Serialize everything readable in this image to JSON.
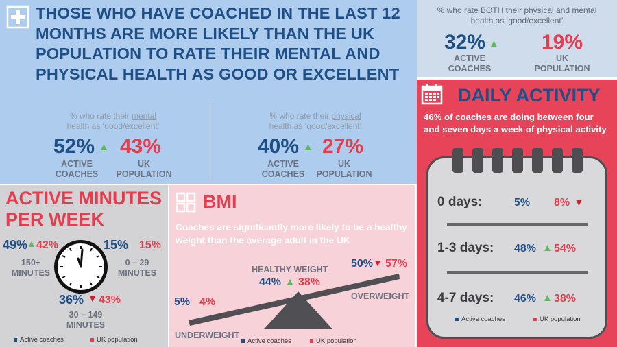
{
  "headline": "THOSE WHO HAVE COACHED IN THE LAST 12 MONTHS ARE MORE LIKELY THAN THE UK POPULATION TO RATE THEIR MENTAL AND PHYSICAL HEALTH AS GOOD OR EXCELLENT",
  "mental": {
    "caption_pre": "% who rate their",
    "caption_key": "mental",
    "caption_post": "health as ‘good/excellent’",
    "coach_value": "52%",
    "coach_label": "ACTIVE COACHES",
    "uk_value": "43%",
    "uk_label": "UK POPULATION"
  },
  "physical": {
    "caption_pre": "% who rate their",
    "caption_key": "physical",
    "caption_post": "health as ‘good/excellent’",
    "coach_value": "40%",
    "coach_label": "ACTIVE COACHES",
    "uk_value": "27%",
    "uk_label": "UK POPULATION"
  },
  "both": {
    "caption_pre": "% who rate BOTH their",
    "caption_key": "physical and mental",
    "caption_post": "health as ‘good/excellent’",
    "coach_value": "32%",
    "coach_label": "ACTIVE COACHES",
    "uk_value": "19%",
    "uk_label": "UK POPULATION"
  },
  "daily": {
    "title": "DAILY ACTIVITY",
    "description": "46% of coaches are doing between four and seven days a week of physical activity",
    "rows": [
      {
        "label": "0 days:",
        "coach": "5%",
        "uk": "8%",
        "trend": "down"
      },
      {
        "label": "1-3 days:",
        "coach": "48%",
        "uk": "54%",
        "trend": "up"
      },
      {
        "label": "4-7 days:",
        "coach": "46%",
        "uk": "38%",
        "trend": "up"
      }
    ],
    "legend_coach": "Active coaches",
    "legend_uk": "UK population"
  },
  "minutes": {
    "title_line1": "ACTIVE MINUTES",
    "title_line2": "PER WEEK",
    "high": {
      "coach": "49%",
      "uk": "42%",
      "label_line1": "150+",
      "label_line2": "MINUTES"
    },
    "low": {
      "coach": "15%",
      "uk": "15%",
      "label_line1": "0 – 29",
      "label_line2": "MINUTES"
    },
    "mid": {
      "coach": "36%",
      "uk": "43%",
      "label_line1": "30 – 149",
      "label_line2": "MINUTES"
    },
    "legend_coach": "Active coaches",
    "legend_uk": "UK population"
  },
  "bmi": {
    "title": "BMI",
    "description": "Coaches are significantly more likely to be a healthy weight than the average adult in the UK",
    "underweight": {
      "coach": "5%",
      "uk": "4%",
      "label": "UNDERWEIGHT"
    },
    "healthy": {
      "coach": "44%",
      "uk": "38%",
      "label": "HEALTHY WEIGHT"
    },
    "overweight": {
      "coach": "50%",
      "uk": "57%",
      "label": "OVERWEIGHT"
    },
    "legend_coach": "Active coaches",
    "legend_uk": "UK population"
  },
  "colors": {
    "coach": "#1f4f87",
    "uk": "#e53d4d",
    "up_arrow": "#5fb85c",
    "down_arrow": "#c9232f",
    "main_bg": "#aecdee",
    "daily_bg": "#e84459",
    "bmi_bg": "#f7d2d8",
    "minutes_bg": "#d3d3d6"
  },
  "icons": [
    "plus-icon",
    "calendar-icon",
    "grid-icon",
    "clock-icon",
    "up-arrow-icon",
    "down-arrow-icon"
  ]
}
